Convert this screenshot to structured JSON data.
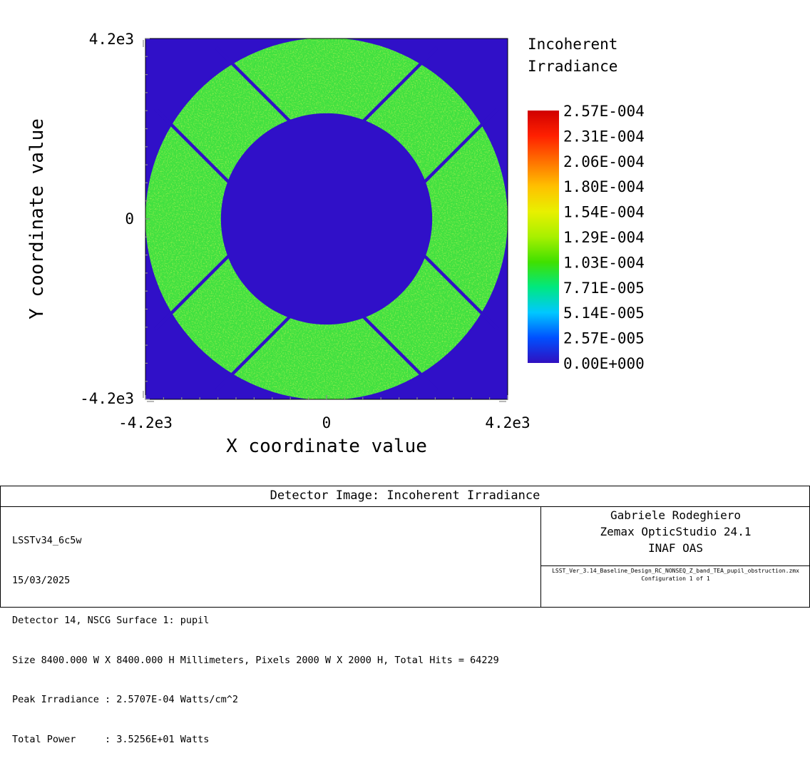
{
  "chart_data": {
    "type": "heatmap",
    "title": "",
    "xlabel": "X coordinate value",
    "ylabel": "Y coordinate value",
    "x_ticks": [
      "-4.2e3",
      "0",
      "4.2e3"
    ],
    "y_ticks": [
      "4.2e3",
      "0",
      "-4.2e3"
    ],
    "xlim": [
      -4200,
      4200
    ],
    "ylim": [
      -4200,
      4200
    ],
    "colorbar": {
      "title_lines": [
        "Incoherent",
        "Irradiance"
      ],
      "labels": [
        "2.57E-004",
        "2.31E-004",
        "2.06E-004",
        "1.80E-004",
        "1.54E-004",
        "1.29E-004",
        "1.03E-004",
        "7.71E-005",
        "5.14E-005",
        "2.57E-005",
        "0.00E+000"
      ],
      "min": 0,
      "max": 0.00025707,
      "colors": [
        "#3010c0",
        "#0050ff",
        "#00c8ff",
        "#00e880",
        "#40e000",
        "#a8f000",
        "#e8f000",
        "#ffc000",
        "#ff7000",
        "#ff2000",
        "#d00000"
      ]
    },
    "pupil": {
      "outer_radius": 4200,
      "inner_radius": 2450,
      "vane_angles_deg": [
        45,
        135,
        225,
        315
      ],
      "vane_offset": 1000,
      "annulus_irradiance": 0.000117,
      "background_irradiance": 0
    },
    "colors": {
      "background": "#3010c8",
      "annulus": "#40e040"
    }
  },
  "info": {
    "title": "Detector Image: Incoherent Irradiance",
    "lines": [
      "LSSTv34_6c5w",
      "15/03/2025",
      "Detector 14, NSCG Surface 1: pupil",
      "Size 8400.000 W X 8400.000 H Millimeters, Pixels 2000 W X 2000 H, Total Hits = 64229",
      "Peak Irradiance : 2.5707E-04 Watts/cm^2",
      "Total Power     : 3.5256E+01 Watts"
    ],
    "author": "Gabriele Rodeghiero",
    "software": "Zemax OpticStudio 24.1",
    "institute": "INAF OAS",
    "filename": "LSST_Ver_3.14_Baseline_Design_RC_NONSEQ_Z_band_TEA_pupil_obstruction.zmx",
    "configuration": "Configuration 1 of 1"
  }
}
